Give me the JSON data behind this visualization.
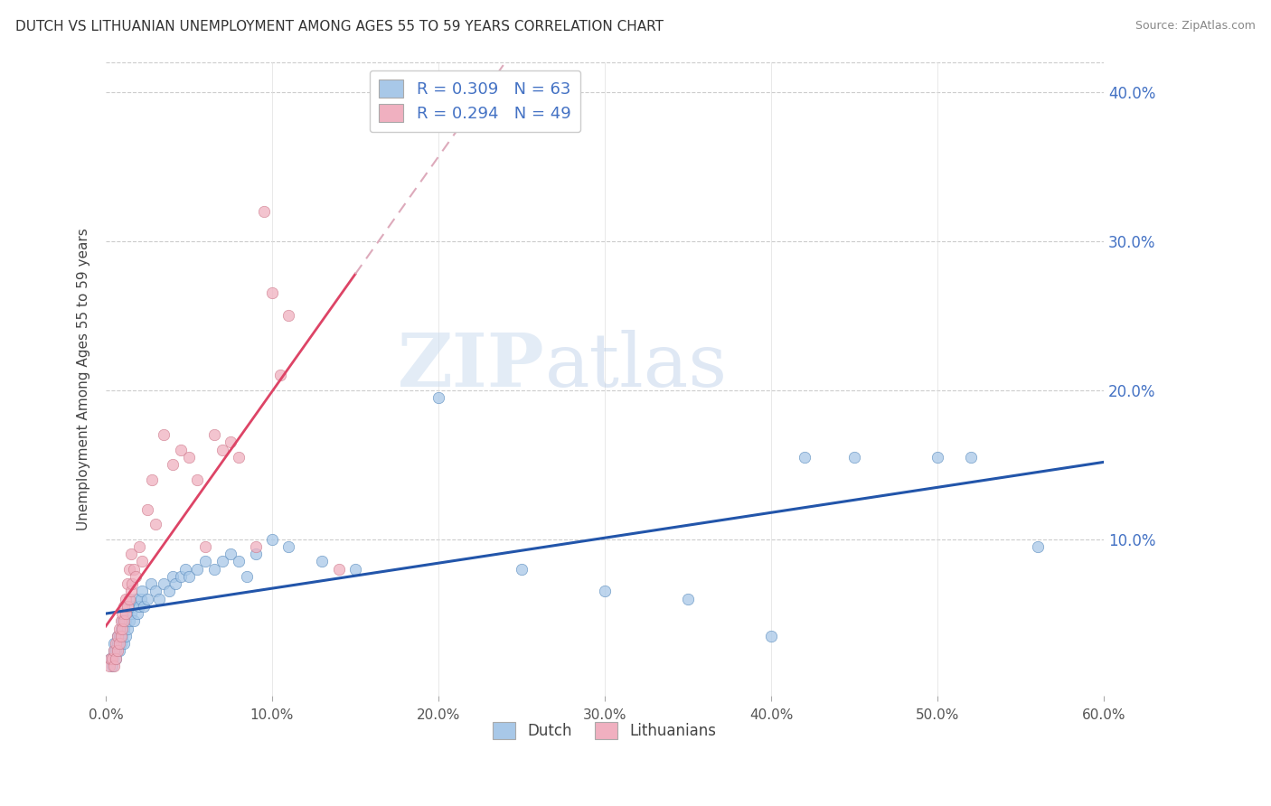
{
  "title": "DUTCH VS LITHUANIAN UNEMPLOYMENT AMONG AGES 55 TO 59 YEARS CORRELATION CHART",
  "source": "Source: ZipAtlas.com",
  "ylabel": "Unemployment Among Ages 55 to 59 years",
  "xlim": [
    0.0,
    0.6
  ],
  "ylim": [
    -0.005,
    0.42
  ],
  "xticks": [
    0.0,
    0.1,
    0.2,
    0.3,
    0.4,
    0.5,
    0.6
  ],
  "xticklabels": [
    "0.0%",
    "10.0%",
    "20.0%",
    "30.0%",
    "40.0%",
    "50.0%",
    "60.0%"
  ],
  "yticks_right": [
    0.1,
    0.2,
    0.3,
    0.4
  ],
  "yticklabels_right": [
    "10.0%",
    "20.0%",
    "30.0%",
    "40.0%"
  ],
  "dutch_color": "#a8c8e8",
  "dutch_edge": "#5588bb",
  "lith_color": "#f0b0c0",
  "lith_edge": "#cc7788",
  "dutch_line_color": "#2255aa",
  "lith_line_solid_color": "#dd4466",
  "lith_line_dash_color": "#ddaabb",
  "dutch_R": 0.309,
  "dutch_N": 63,
  "lith_R": 0.294,
  "lith_N": 49,
  "legend_label_dutch": "Dutch",
  "legend_label_lith": "Lithuanians",
  "watermark_zip": "ZIP",
  "watermark_atlas": "atlas",
  "background_color": "#ffffff",
  "dutch_x": [
    0.003,
    0.004,
    0.005,
    0.005,
    0.006,
    0.006,
    0.007,
    0.007,
    0.008,
    0.008,
    0.009,
    0.009,
    0.01,
    0.01,
    0.011,
    0.011,
    0.012,
    0.012,
    0.013,
    0.013,
    0.014,
    0.015,
    0.016,
    0.017,
    0.018,
    0.019,
    0.02,
    0.021,
    0.022,
    0.023,
    0.025,
    0.027,
    0.03,
    0.032,
    0.035,
    0.038,
    0.04,
    0.042,
    0.045,
    0.048,
    0.05,
    0.055,
    0.06,
    0.065,
    0.07,
    0.075,
    0.08,
    0.085,
    0.09,
    0.1,
    0.11,
    0.13,
    0.15,
    0.2,
    0.25,
    0.3,
    0.35,
    0.4,
    0.42,
    0.45,
    0.5,
    0.52,
    0.56
  ],
  "dutch_y": [
    0.02,
    0.015,
    0.025,
    0.03,
    0.02,
    0.025,
    0.03,
    0.035,
    0.025,
    0.035,
    0.03,
    0.04,
    0.035,
    0.045,
    0.03,
    0.04,
    0.035,
    0.045,
    0.04,
    0.05,
    0.045,
    0.05,
    0.055,
    0.045,
    0.06,
    0.05,
    0.055,
    0.06,
    0.065,
    0.055,
    0.06,
    0.07,
    0.065,
    0.06,
    0.07,
    0.065,
    0.075,
    0.07,
    0.075,
    0.08,
    0.075,
    0.08,
    0.085,
    0.08,
    0.085,
    0.09,
    0.085,
    0.075,
    0.09,
    0.1,
    0.095,
    0.085,
    0.08,
    0.195,
    0.08,
    0.065,
    0.06,
    0.035,
    0.155,
    0.155,
    0.155,
    0.155,
    0.095
  ],
  "lith_x": [
    0.002,
    0.003,
    0.004,
    0.005,
    0.005,
    0.006,
    0.006,
    0.007,
    0.007,
    0.008,
    0.008,
    0.009,
    0.009,
    0.01,
    0.01,
    0.011,
    0.011,
    0.012,
    0.012,
    0.013,
    0.013,
    0.014,
    0.014,
    0.015,
    0.015,
    0.016,
    0.017,
    0.018,
    0.02,
    0.022,
    0.025,
    0.028,
    0.03,
    0.035,
    0.04,
    0.045,
    0.05,
    0.055,
    0.06,
    0.065,
    0.07,
    0.075,
    0.08,
    0.09,
    0.095,
    0.1,
    0.105,
    0.11,
    0.14
  ],
  "lith_y": [
    0.015,
    0.02,
    0.02,
    0.015,
    0.025,
    0.02,
    0.03,
    0.025,
    0.035,
    0.03,
    0.04,
    0.035,
    0.045,
    0.04,
    0.05,
    0.045,
    0.055,
    0.05,
    0.06,
    0.055,
    0.07,
    0.06,
    0.08,
    0.065,
    0.09,
    0.07,
    0.08,
    0.075,
    0.095,
    0.085,
    0.12,
    0.14,
    0.11,
    0.17,
    0.15,
    0.16,
    0.155,
    0.14,
    0.095,
    0.17,
    0.16,
    0.165,
    0.155,
    0.095,
    0.32,
    0.265,
    0.21,
    0.25,
    0.08
  ],
  "lith_trend_x_end": 0.15,
  "dutch_trend_intercept": 0.025,
  "dutch_trend_slope": 0.125,
  "lith_trend_intercept": 0.008,
  "lith_trend_slope": 1.55
}
